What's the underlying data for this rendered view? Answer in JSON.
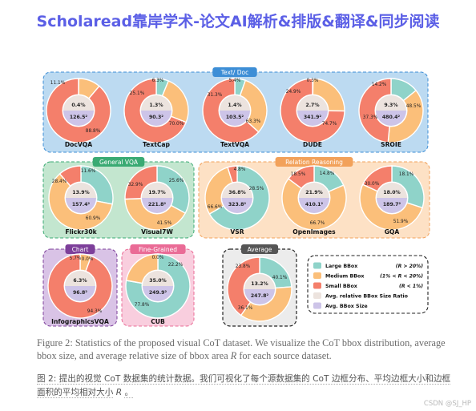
{
  "banner": "Scholaread靠岸学术-论文AI解析&排版&翻译&同步阅读",
  "colors": {
    "large": "#8fd3c9",
    "medium": "#fbbf7a",
    "small": "#f47f6b",
    "ratio": "#ece3de",
    "size": "#cdc4e8"
  },
  "groups": [
    {
      "label": "Text/ Doc",
      "color": "#3d8ed6",
      "bg": "#bcdaf1"
    },
    {
      "label": "General VQA",
      "color": "#3aaa73",
      "bg": "#c3e6cf"
    },
    {
      "label": "Relation Reasoning",
      "color": "#f2a15a",
      "bg": "#fde1c5"
    },
    {
      "label": "Chart",
      "color": "#7d3f9a",
      "bg": "#d9c3e6"
    },
    {
      "label": "Fine-Grained",
      "color": "#ea6b96",
      "bg": "#f9cede"
    },
    {
      "label": "Average",
      "color": "#555555",
      "bg": "#ececec"
    }
  ],
  "chart_data": [
    {
      "type": "pie",
      "title": "DocVQA",
      "ratio": "0.4%",
      "size": "126.5²",
      "labels": [
        "11.1%",
        "88.8%"
      ],
      "slices": [
        {
          "name": "Large",
          "value": 0.1
        },
        {
          "name": "Medium",
          "value": 11.1
        },
        {
          "name": "Small",
          "value": 88.8
        }
      ]
    },
    {
      "type": "pie",
      "title": "TextCap",
      "ratio": "1.3%",
      "size": "90.3²",
      "labels": [
        "6.3%",
        "25.1%",
        "70.0%"
      ],
      "slices": [
        {
          "name": "Large",
          "value": 6.3
        },
        {
          "name": "Medium",
          "value": 25.1
        },
        {
          "name": "Small",
          "value": 70.0
        }
      ]
    },
    {
      "type": "pie",
      "title": "TextVQA",
      "ratio": "1.4%",
      "size": "103.5²",
      "labels": [
        "5.4%",
        "31.3%",
        "63.3%"
      ],
      "slices": [
        {
          "name": "Large",
          "value": 5.4
        },
        {
          "name": "Medium",
          "value": 31.3
        },
        {
          "name": "Small",
          "value": 63.3
        }
      ]
    },
    {
      "type": "pie",
      "title": "DUDE",
      "ratio": "2.7%",
      "size": "341.9²",
      "labels": [
        "0.3%",
        "24.9%",
        "74.7%"
      ],
      "slices": [
        {
          "name": "Large",
          "value": 0.3
        },
        {
          "name": "Medium",
          "value": 24.9
        },
        {
          "name": "Small",
          "value": 74.7
        }
      ]
    },
    {
      "type": "pie",
      "title": "SROIE",
      "ratio": "9.3%",
      "size": "480.4²",
      "labels": [
        "14.2%",
        "37.3%",
        "48.5%"
      ],
      "slices": [
        {
          "name": "Large",
          "value": 14.2
        },
        {
          "name": "Medium",
          "value": 37.3
        },
        {
          "name": "Small",
          "value": 48.5
        }
      ]
    },
    {
      "type": "pie",
      "title": "Flickr30k",
      "ratio": "13.9%",
      "size": "157.4²",
      "labels": [
        "28.4%",
        "60.9%",
        "11.6%"
      ],
      "slices": [
        {
          "name": "Large",
          "value": 28.4
        },
        {
          "name": "Medium",
          "value": 60.9
        },
        {
          "name": "Small",
          "value": 11.6
        }
      ]
    },
    {
      "type": "pie",
      "title": "Visual7W",
      "ratio": "19.7%",
      "size": "221.8²",
      "labels": [
        "32.9%",
        "41.5%",
        "25.6%"
      ],
      "slices": [
        {
          "name": "Large",
          "value": 32.9
        },
        {
          "name": "Medium",
          "value": 41.5
        },
        {
          "name": "Small",
          "value": 25.6
        }
      ]
    },
    {
      "type": "pie",
      "title": "VSR",
      "ratio": "36.8%",
      "size": "323.8²",
      "labels": [
        "66.6%",
        "28.5%",
        "4.8%"
      ],
      "slices": [
        {
          "name": "Large",
          "value": 66.6
        },
        {
          "name": "Medium",
          "value": 28.5
        },
        {
          "name": "Small",
          "value": 4.8
        }
      ]
    },
    {
      "type": "pie",
      "title": "OpenImages",
      "ratio": "21.9%",
      "size": "410.1²",
      "labels": [
        "18.5%",
        "66.7%",
        "14.8%"
      ],
      "slices": [
        {
          "name": "Large",
          "value": 18.5
        },
        {
          "name": "Medium",
          "value": 66.7
        },
        {
          "name": "Small",
          "value": 14.8
        }
      ]
    },
    {
      "type": "pie",
      "title": "GQA",
      "ratio": "18.0%",
      "size": "189.7²",
      "labels": [
        "30.0%",
        "51.9%",
        "18.1%"
      ],
      "slices": [
        {
          "name": "Large",
          "value": 30.0
        },
        {
          "name": "Medium",
          "value": 51.9
        },
        {
          "name": "Small",
          "value": 18.1
        }
      ]
    },
    {
      "type": "pie",
      "title": "InfographicsVQA",
      "ratio": "6.3%",
      "size": "96.8²",
      "labels": [
        "5.7%",
        "0.0%",
        "94.3%"
      ],
      "slices": [
        {
          "name": "Large",
          "value": 0.0
        },
        {
          "name": "Medium",
          "value": 5.7
        },
        {
          "name": "Small",
          "value": 94.3
        }
      ]
    },
    {
      "type": "pie",
      "title": "CUB",
      "ratio": "35.0%",
      "size": "249.9²",
      "labels": [
        "0.0%",
        "22.2%",
        "77.8%"
      ],
      "slices": [
        {
          "name": "Large",
          "value": 77.8
        },
        {
          "name": "Medium",
          "value": 22.2
        },
        {
          "name": "Small",
          "value": 0.0
        }
      ]
    },
    {
      "type": "pie",
      "title": "",
      "ratio": "13.2%",
      "size": "247.8²",
      "labels": [
        "23.8%",
        "36.1%",
        "40.1%"
      ],
      "slices": [
        {
          "name": "Large",
          "value": 23.8
        },
        {
          "name": "Medium",
          "value": 36.1
        },
        {
          "name": "Small",
          "value": 40.1
        }
      ]
    }
  ],
  "legend": [
    {
      "key": "large",
      "label": "Large BBox",
      "range": "(R > 20%)"
    },
    {
      "key": "medium",
      "label": "Medium BBox",
      "range": "(1% < R < 20%)"
    },
    {
      "key": "small",
      "label": "Small BBox",
      "range": "(R < 1%)"
    },
    {
      "key": "ratio",
      "label": "Avg. relative BBox Size Ratio",
      "range": ""
    },
    {
      "key": "size",
      "label": "Avg. BBox Size",
      "range": ""
    }
  ],
  "caption_en": {
    "prefix": "Figure 2: Statistics of the proposed visual CoT dataset. We visualize the CoT bbox distribution, average bbox size, and average relative size of bbox area",
    "var": "R",
    "suffix": "for each source dataset."
  },
  "caption_zh": {
    "prefix": "图 2: 提出的视觉 CoT 数据集的统计数据。我们可视化了每个源数据集的 CoT 边框分布、平均边框大小和边框面积的平均相对大小",
    "var": "R",
    "suffix": "。"
  },
  "watermark": "CSDN @SJ_HP"
}
